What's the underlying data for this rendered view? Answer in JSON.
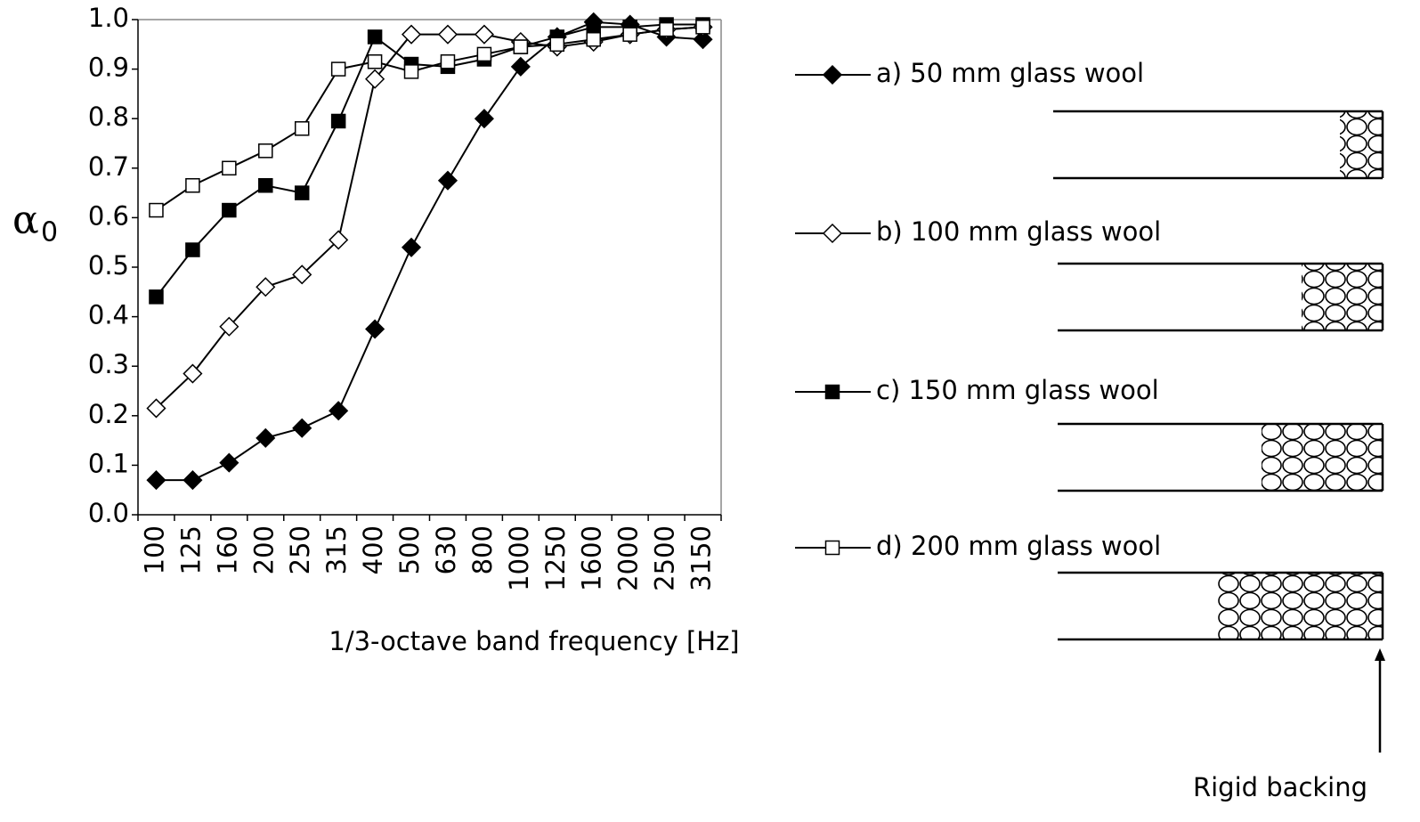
{
  "chart_data": {
    "type": "line",
    "y_label": "α",
    "y_label_sub": "0",
    "x_label": "1/3-octave band frequency [Hz]",
    "categories": [
      "100",
      "125",
      "160",
      "200",
      "250",
      "315",
      "400",
      "500",
      "630",
      "800",
      "1000",
      "1250",
      "1600",
      "2000",
      "2500",
      "3150"
    ],
    "ylim": [
      0,
      1
    ],
    "yticks": [
      {
        "value": 0,
        "label": "0.0"
      },
      0.1,
      0.2,
      0.3,
      0.4,
      0.5,
      0.6,
      0.7,
      0.8,
      0.9,
      {
        "value": 1,
        "label": "1.0"
      }
    ],
    "series": [
      {
        "name": "a) 50 mm glass wool",
        "color": "#000000",
        "marker": "diamond",
        "filled": true,
        "values": [
          0.07,
          0.07,
          0.105,
          0.155,
          0.175,
          0.21,
          0.375,
          0.54,
          0.675,
          0.8,
          0.905,
          0.965,
          0.995,
          0.99,
          0.965,
          0.96
        ]
      },
      {
        "name": "b) 100 mm glass wool",
        "color": "#000000",
        "marker": "diamond",
        "filled": false,
        "values": [
          0.215,
          0.285,
          0.38,
          0.46,
          0.485,
          0.555,
          0.88,
          0.97,
          0.97,
          0.97,
          0.955,
          0.945,
          0.955,
          0.97,
          0.98,
          0.985
        ]
      },
      {
        "name": "c) 150 mm glass wool",
        "color": "#000000",
        "marker": "square",
        "filled": true,
        "values": [
          0.44,
          0.535,
          0.615,
          0.665,
          0.65,
          0.795,
          0.965,
          0.91,
          0.905,
          0.92,
          0.945,
          0.965,
          0.985,
          0.985,
          0.99,
          0.99
        ]
      },
      {
        "name": "d) 200 mm glass wool",
        "color": "#000000",
        "marker": "square",
        "filled": false,
        "values": [
          0.615,
          0.665,
          0.7,
          0.735,
          0.78,
          0.9,
          0.915,
          0.895,
          0.915,
          0.93,
          0.945,
          0.95,
          0.96,
          0.97,
          0.98,
          0.985
        ]
      }
    ],
    "annotation": "Rigid backing"
  }
}
